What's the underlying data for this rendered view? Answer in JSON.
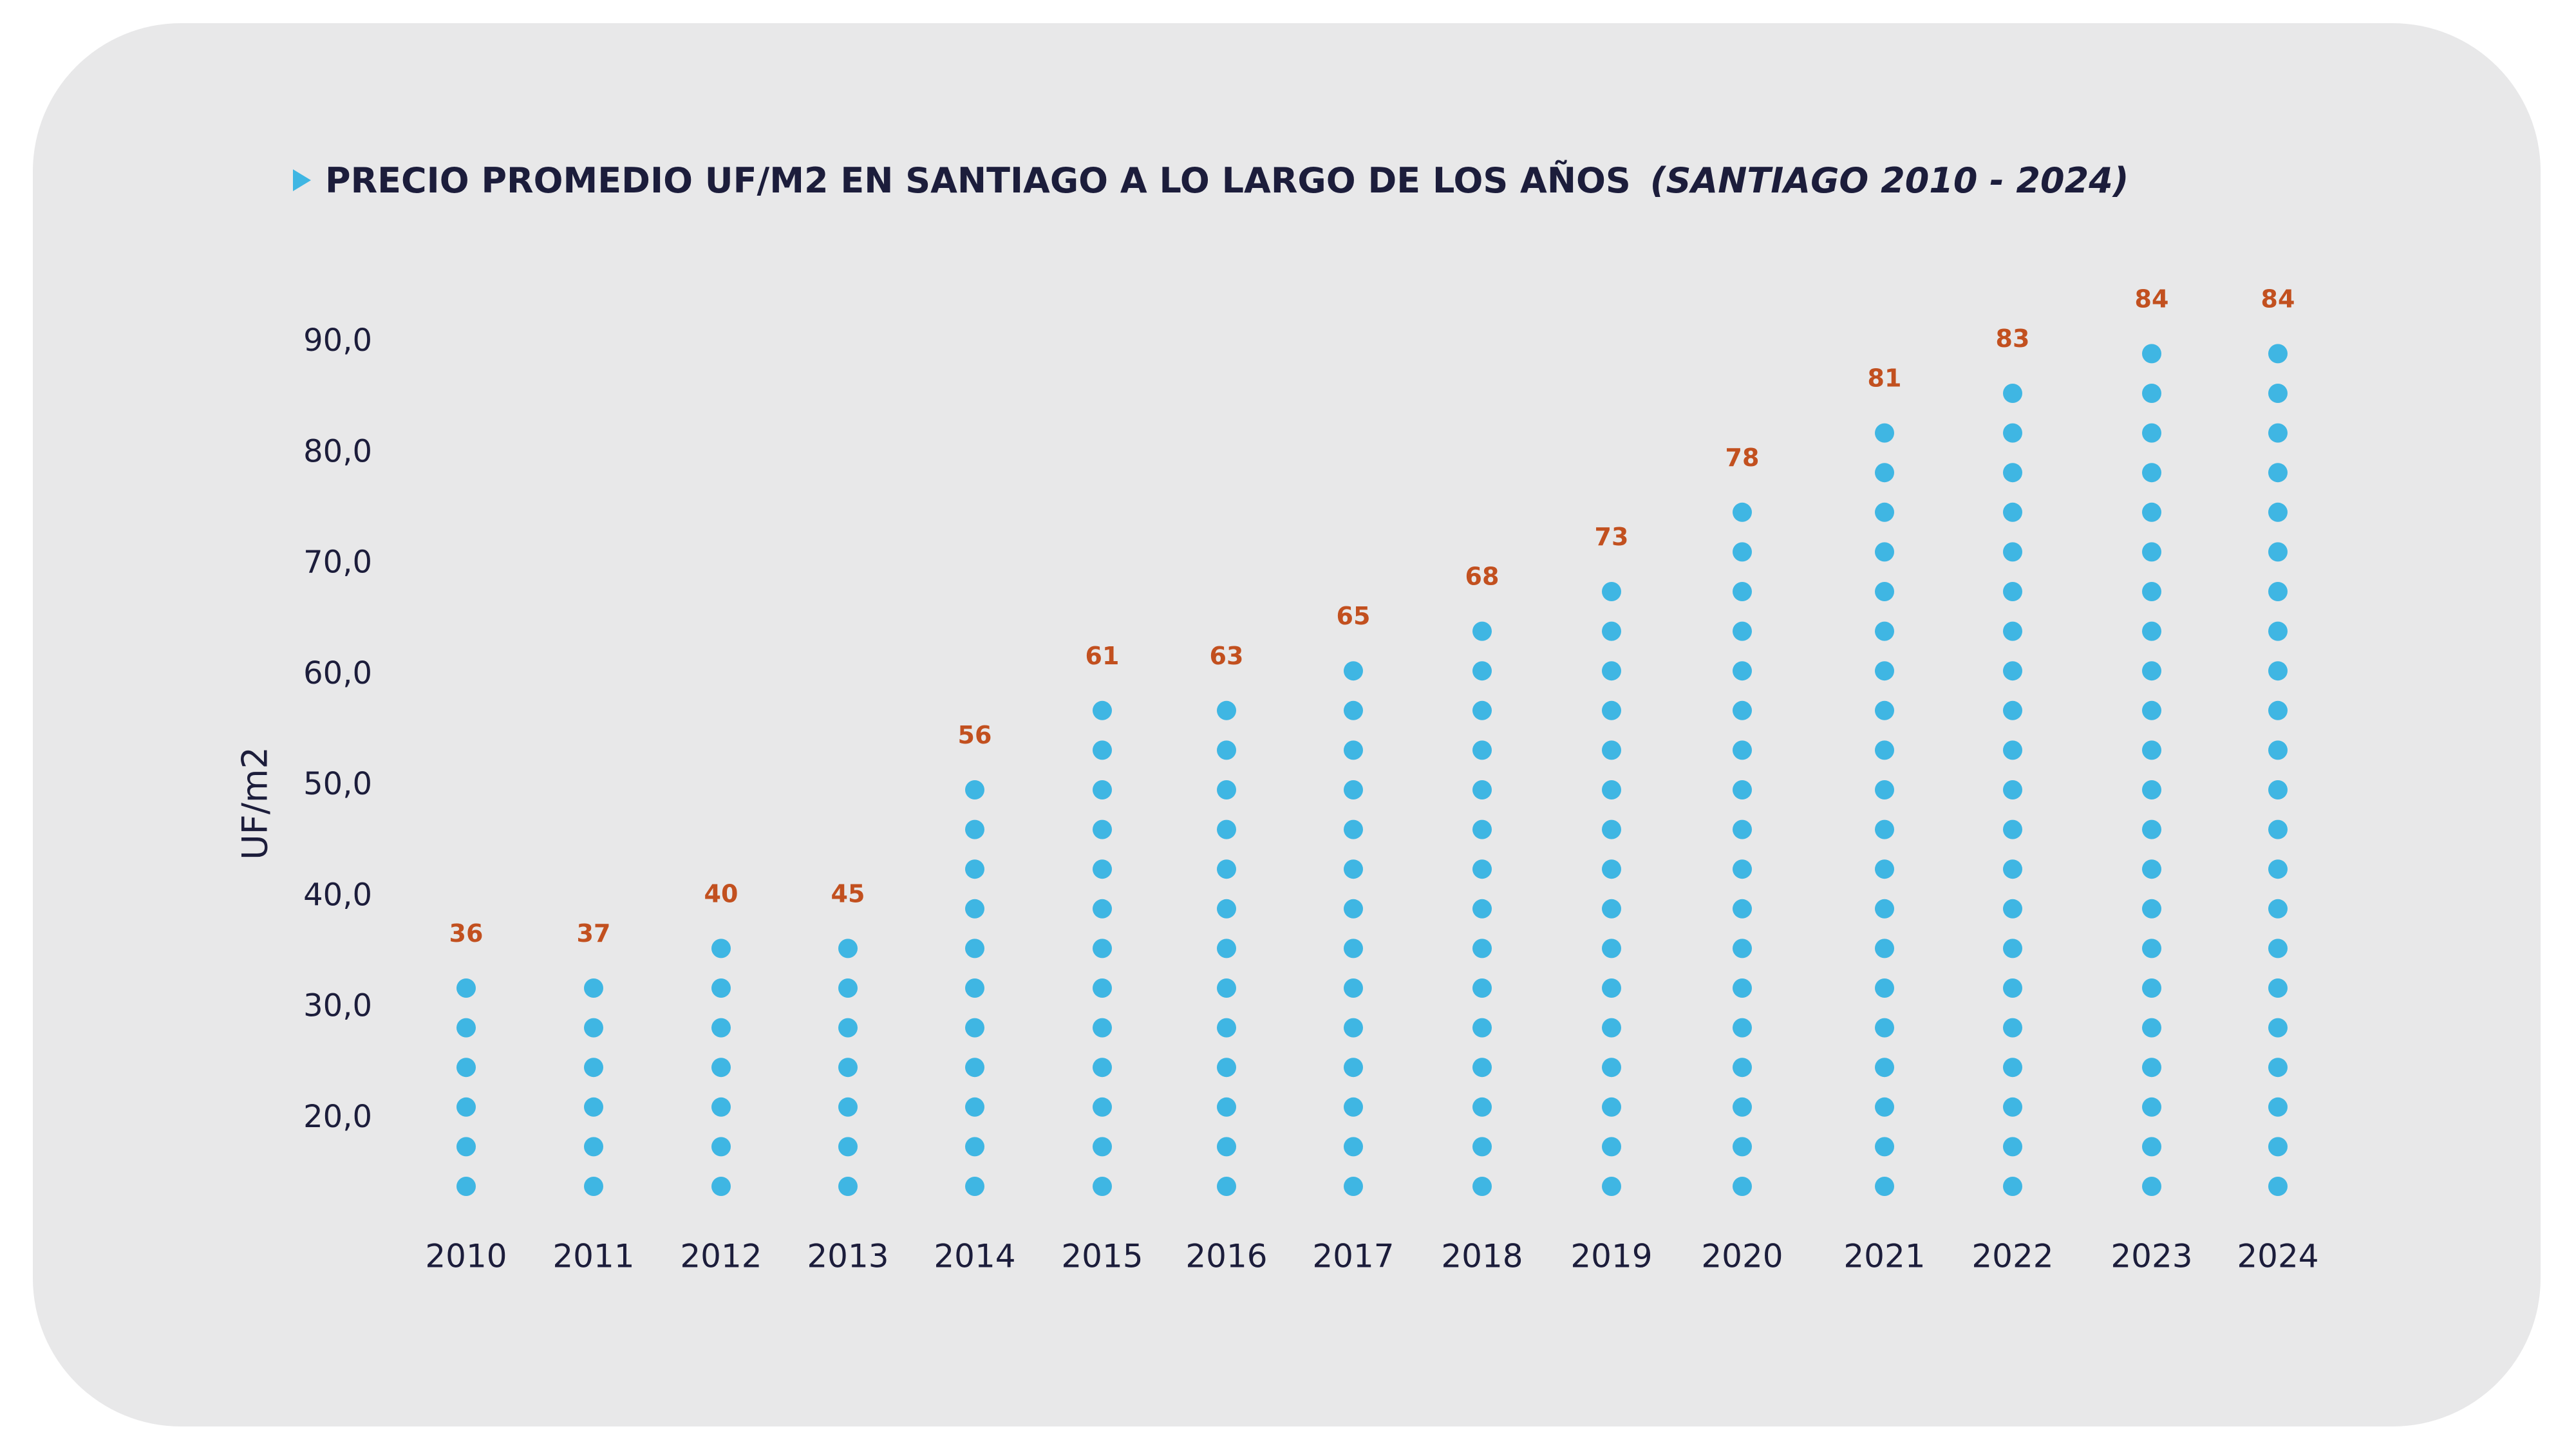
{
  "header": {
    "title": "PRECIO PROMEDIO UF/M2 EN SANTIAGO A LO LARGO DE LOS AÑOS",
    "subtitle": "(SANTIAGO 2010 - 2024)"
  },
  "colors": {
    "card_background": "#e8e8e9",
    "dot": "#3fb6e3",
    "value_label": "#c2501f",
    "text": "#1c1d3b",
    "title_marker": "#3fb6e3"
  },
  "chart_data": {
    "type": "scatter",
    "title": "PRECIO PROMEDIO UF/M2 EN SANTIAGO A LO LARGO DE LOS AÑOS",
    "subtitle": "(SANTIAGO 2010 - 2024)",
    "xlabel": "",
    "ylabel": "UF/m2",
    "categories": [
      "2010",
      "2011",
      "2012",
      "2013",
      "2014",
      "2015",
      "2016",
      "2017",
      "2018",
      "2019",
      "2020",
      "2021",
      "2022",
      "2023",
      "2024"
    ],
    "values": [
      36,
      37,
      40,
      45,
      56,
      61,
      63,
      65,
      68,
      73,
      78,
      81,
      83,
      84,
      84
    ],
    "value_labels": [
      "36",
      "37",
      "40",
      "45",
      "56",
      "61",
      "63",
      "65",
      "68",
      "73",
      "78",
      "81",
      "83",
      "84",
      "84"
    ],
    "dot_counts": [
      6,
      6,
      7,
      7,
      11,
      13,
      13,
      14,
      15,
      16,
      18,
      20,
      21,
      22,
      22
    ],
    "y_ticks": [
      20,
      30,
      40,
      50,
      60,
      70,
      80,
      90
    ],
    "y_tick_labels": [
      "20,0",
      "30,0",
      "40,0",
      "50,0",
      "60,0",
      "70,0",
      "80,0",
      "90,0"
    ],
    "ylim": [
      12,
      92
    ],
    "grid": false,
    "legend": "none"
  }
}
